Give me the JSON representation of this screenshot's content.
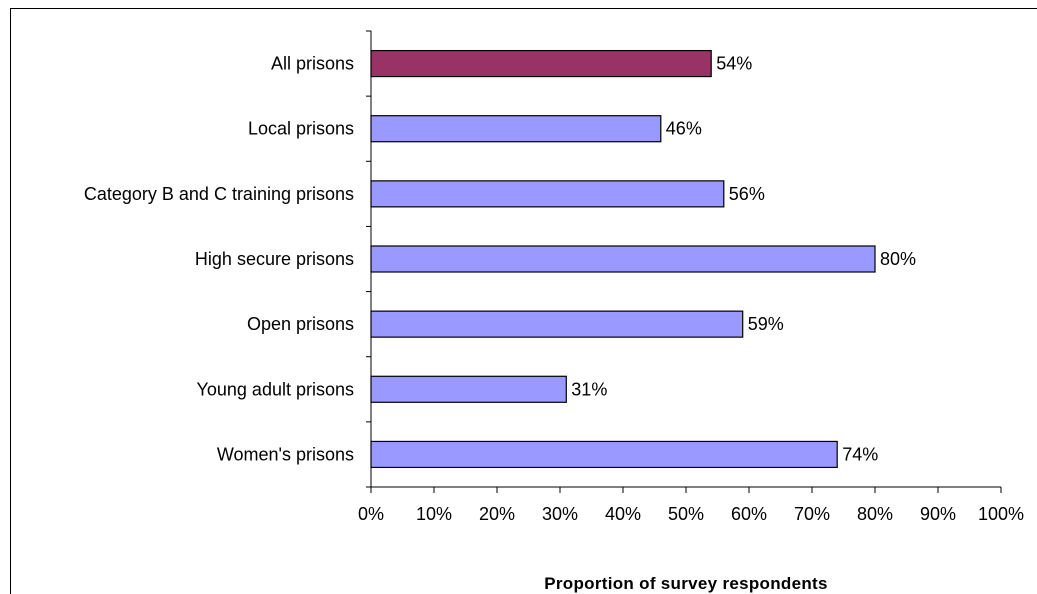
{
  "chart_data": {
    "type": "bar",
    "orientation": "horizontal",
    "categories": [
      "All prisons",
      "Local prisons",
      "Category B and C training prisons",
      "High secure prisons",
      "Open prisons",
      "Young adult prisons",
      "Women's prisons"
    ],
    "values": [
      54,
      46,
      56,
      80,
      59,
      31,
      74
    ],
    "value_labels": [
      "54%",
      "46%",
      "56%",
      "80%",
      "59%",
      "31%",
      "74%"
    ],
    "bar_colors": [
      "#993366",
      "#9999ff",
      "#9999ff",
      "#9999ff",
      "#9999ff",
      "#9999ff",
      "#9999ff"
    ],
    "xlabel": "Proportion of survey respondents",
    "xlim": [
      0,
      100
    ],
    "xticks": [
      "0%",
      "10%",
      "20%",
      "30%",
      "40%",
      "50%",
      "60%",
      "70%",
      "80%",
      "90%",
      "100%"
    ],
    "grid": false,
    "legend": "none"
  }
}
